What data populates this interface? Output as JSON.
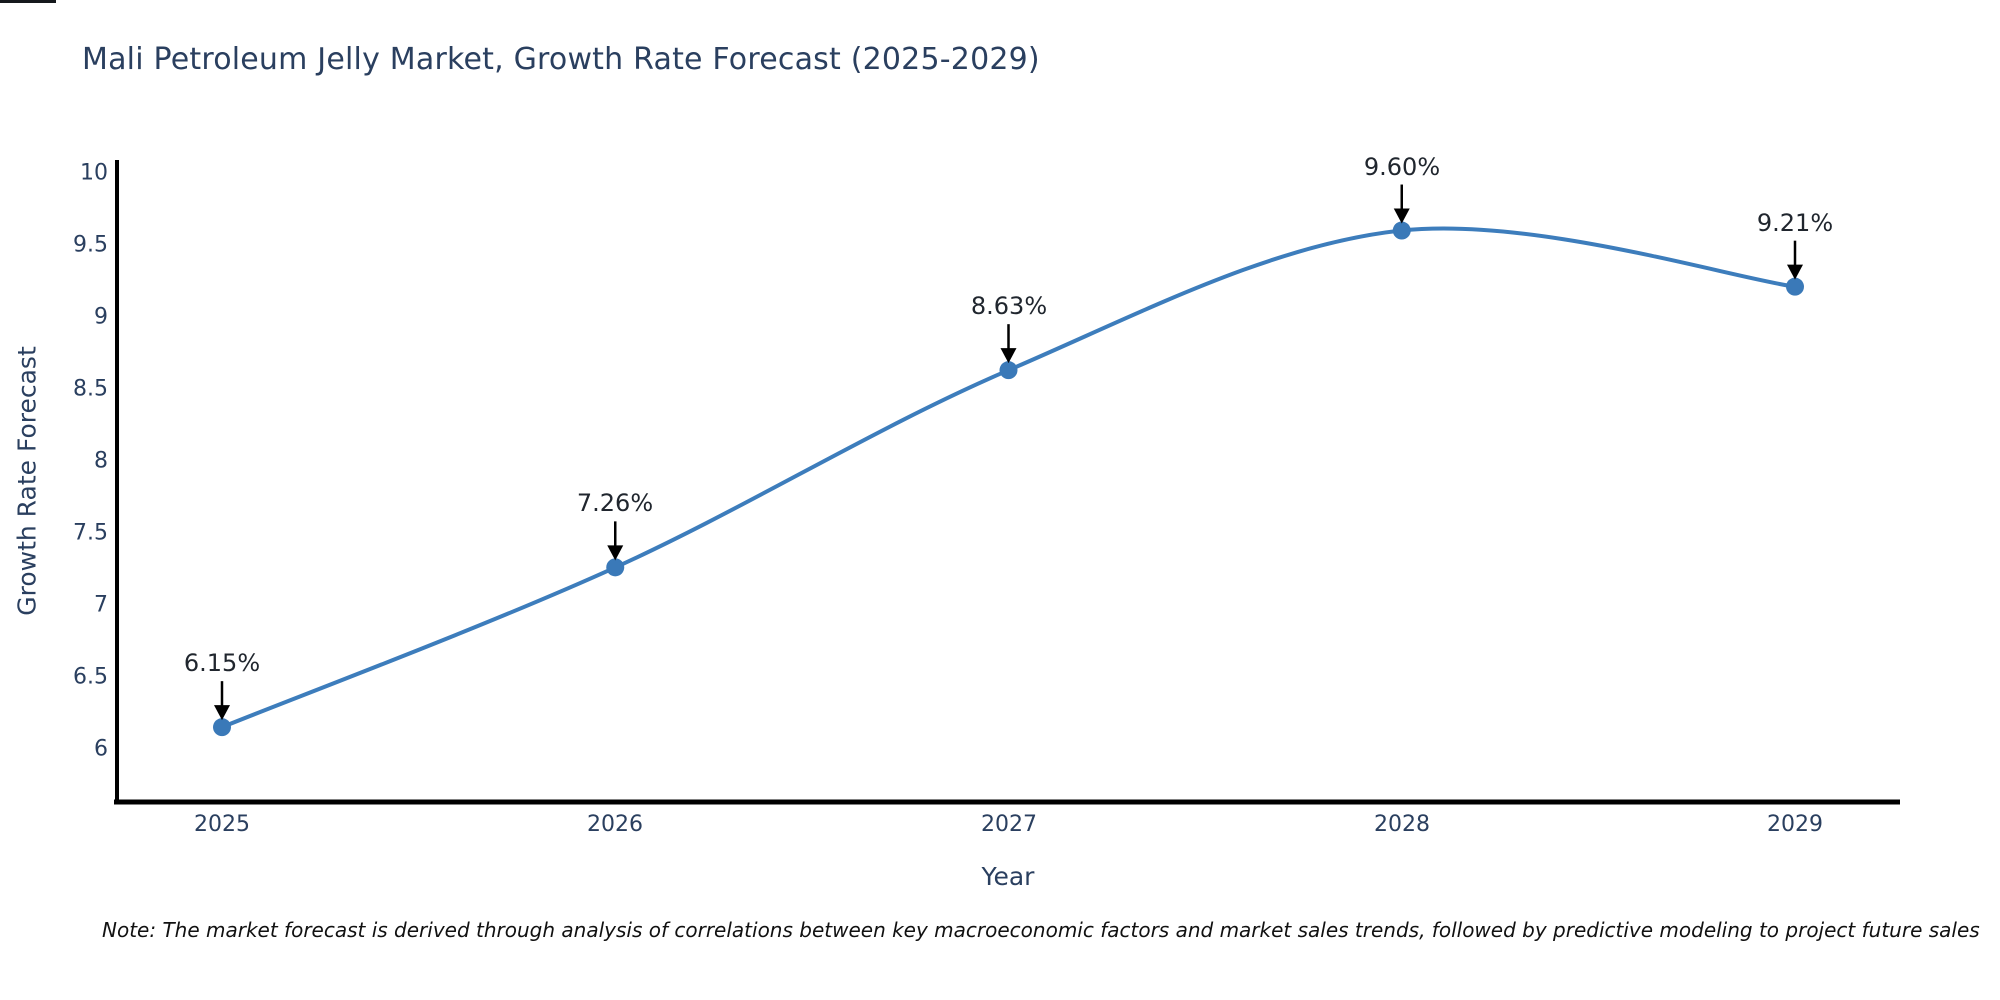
{
  "title": "Mali Petroleum Jelly Market, Growth Rate Forecast (2025-2029)",
  "note": "Note: The market forecast is derived through analysis of correlations between key macroeconomic factors and market sales trends, followed by predictive modeling to project future sales",
  "chart_data": {
    "type": "line",
    "curve": "spline",
    "title": "Mali Petroleum Jelly Market, Growth Rate Forecast (2025-2029)",
    "xlabel": "Year",
    "ylabel": "Growth Rate Forecast",
    "x": [
      "2025",
      "2026",
      "2027",
      "2028",
      "2029"
    ],
    "values": [
      6.15,
      7.26,
      8.63,
      9.6,
      9.21
    ],
    "point_labels": [
      "6.15%",
      "7.26%",
      "8.63%",
      "9.60%",
      "9.21%"
    ],
    "yticks": [
      "6",
      "6.5",
      "7",
      "7.5",
      "8",
      "8.5",
      "9",
      "9.5",
      "10"
    ],
    "ytick_values": [
      6,
      6.5,
      7,
      7.5,
      8,
      8.5,
      9,
      9.5,
      10
    ],
    "ylim": [
      5.63,
      10.09
    ],
    "grid": false,
    "legend": "none",
    "colors": {
      "line": "#3d7dbc",
      "marker": "#3a79b8",
      "axis": "#000000",
      "text": "#2a3f5f",
      "annotation_arrow": "#000000",
      "background": "#ffffff"
    }
  }
}
